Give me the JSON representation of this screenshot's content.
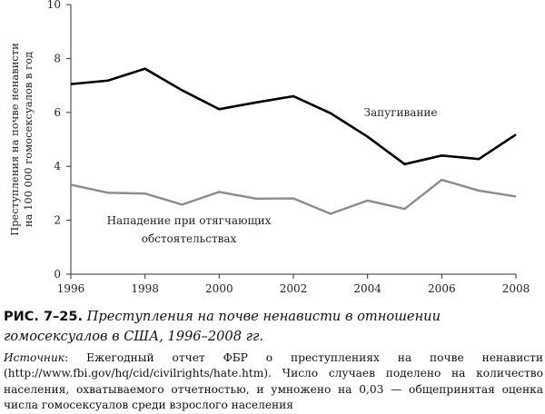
{
  "chart_data": {
    "type": "line",
    "ylabel_lines": [
      "Преступления на почве ненависти",
      "на 100 000 гомосексуалов в год"
    ],
    "ylim": [
      0,
      10
    ],
    "yticks": [
      0,
      2,
      4,
      6,
      8,
      10
    ],
    "xlim": [
      1996,
      2008
    ],
    "xticks": [
      1996,
      1998,
      2000,
      2002,
      2004,
      2006,
      2008
    ],
    "x": [
      1996,
      1997,
      1998,
      1999,
      2000,
      2001,
      2002,
      2003,
      2004,
      2005,
      2006,
      2007,
      2008
    ],
    "series": [
      {
        "name": "Запугивание",
        "label_lines": [
          "Запугивание"
        ],
        "color": "#000000",
        "values": [
          7.05,
          7.18,
          7.62,
          6.82,
          6.12,
          6.37,
          6.6,
          5.97,
          5.1,
          4.08,
          4.4,
          4.27,
          5.18
        ]
      },
      {
        "name": "Нападение при отягчающих обстоятельствах",
        "label_lines": [
          "Нападение при отягчающих",
          "обстоятельствах"
        ],
        "color": "#8c8c8c",
        "values": [
          3.32,
          3.02,
          2.99,
          2.58,
          3.05,
          2.8,
          2.81,
          2.24,
          2.73,
          2.42,
          3.5,
          3.1,
          2.88
        ]
      }
    ]
  },
  "caption": {
    "number": "РИС. 7–25.",
    "title": "Преступления на почве ненависти в отношении гомосексуалов в США, 1996–2008 гг."
  },
  "source": {
    "label": "Источник",
    "text": ": Ежегодный отчет ФБР о преступлениях на почве ненависти (http://www.fbi.gov/hq/cid/civilrights/hate.htm). Число случаев поделено на количество населения, охватываемого отчетностью, и умножено на 0,03 — общепринятая оценка числа гомосексуалов среди взрослого населения"
  }
}
